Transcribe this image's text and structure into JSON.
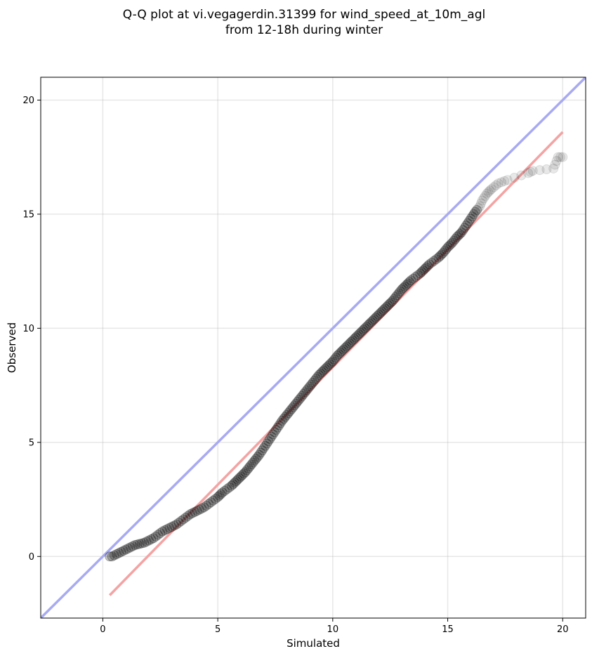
{
  "chart_data": {
    "type": "scatter",
    "title": "Q-Q plot at vi.vegagerdin.31399 for wind_speed_at_10m_agl",
    "subtitle": "from 12-18h during winter",
    "xlabel": "Simulated",
    "ylabel": "Observed",
    "xlim": [
      -2.7,
      21.0
    ],
    "ylim": [
      -2.7,
      21.0
    ],
    "x_ticks": [
      0,
      5,
      10,
      15,
      20
    ],
    "y_ticks": [
      0,
      5,
      10,
      15,
      20
    ],
    "grid": true,
    "legend": "none",
    "series": [
      {
        "kind": "quantile-points",
        "color": "#000000",
        "points": [
          [
            0.3,
            0.0
          ],
          [
            0.4,
            0.0
          ],
          [
            0.6,
            0.1
          ],
          [
            0.8,
            0.2
          ],
          [
            1.0,
            0.3
          ],
          [
            1.2,
            0.4
          ],
          [
            1.4,
            0.5
          ],
          [
            1.6,
            0.55
          ],
          [
            1.8,
            0.6
          ],
          [
            2.0,
            0.7
          ],
          [
            2.2,
            0.8
          ],
          [
            2.4,
            0.95
          ],
          [
            2.6,
            1.1
          ],
          [
            2.8,
            1.2
          ],
          [
            3.0,
            1.3
          ],
          [
            3.2,
            1.4
          ],
          [
            3.4,
            1.55
          ],
          [
            3.6,
            1.7
          ],
          [
            3.8,
            1.85
          ],
          [
            4.0,
            1.95
          ],
          [
            4.2,
            2.05
          ],
          [
            4.4,
            2.15
          ],
          [
            4.6,
            2.3
          ],
          [
            4.8,
            2.45
          ],
          [
            5.0,
            2.6
          ],
          [
            5.2,
            2.8
          ],
          [
            5.4,
            2.95
          ],
          [
            5.6,
            3.1
          ],
          [
            5.8,
            3.3
          ],
          [
            6.0,
            3.5
          ],
          [
            6.2,
            3.7
          ],
          [
            6.4,
            3.95
          ],
          [
            6.6,
            4.2
          ],
          [
            6.8,
            4.45
          ],
          [
            7.0,
            4.75
          ],
          [
            7.2,
            5.05
          ],
          [
            7.4,
            5.35
          ],
          [
            7.6,
            5.65
          ],
          [
            7.8,
            5.95
          ],
          [
            8.0,
            6.2
          ],
          [
            8.2,
            6.45
          ],
          [
            8.4,
            6.7
          ],
          [
            8.6,
            6.95
          ],
          [
            8.8,
            7.2
          ],
          [
            9.0,
            7.45
          ],
          [
            9.2,
            7.7
          ],
          [
            9.4,
            7.95
          ],
          [
            9.6,
            8.15
          ],
          [
            9.8,
            8.35
          ],
          [
            10.0,
            8.55
          ],
          [
            10.2,
            8.8
          ],
          [
            10.4,
            9.0
          ],
          [
            10.6,
            9.2
          ],
          [
            10.8,
            9.4
          ],
          [
            11.0,
            9.6
          ],
          [
            11.2,
            9.8
          ],
          [
            11.4,
            10.0
          ],
          [
            11.6,
            10.2
          ],
          [
            11.8,
            10.4
          ],
          [
            12.0,
            10.6
          ],
          [
            12.2,
            10.8
          ],
          [
            12.4,
            11.0
          ],
          [
            12.6,
            11.2
          ],
          [
            12.8,
            11.45
          ],
          [
            13.0,
            11.7
          ],
          [
            13.2,
            11.9
          ],
          [
            13.4,
            12.1
          ],
          [
            13.6,
            12.25
          ],
          [
            13.8,
            12.4
          ],
          [
            14.0,
            12.6
          ],
          [
            14.2,
            12.8
          ],
          [
            14.4,
            12.95
          ],
          [
            14.6,
            13.1
          ],
          [
            14.8,
            13.3
          ],
          [
            15.0,
            13.55
          ],
          [
            15.2,
            13.75
          ],
          [
            15.4,
            14.0
          ],
          [
            15.6,
            14.2
          ],
          [
            15.8,
            14.5
          ],
          [
            16.0,
            14.8
          ],
          [
            16.2,
            15.1
          ],
          [
            16.4,
            15.35
          ],
          [
            16.5,
            15.6
          ],
          [
            16.7,
            15.9
          ],
          [
            16.9,
            16.1
          ],
          [
            17.2,
            16.35
          ],
          [
            17.6,
            16.5
          ],
          [
            18.5,
            16.8
          ],
          [
            18.7,
            16.9
          ],
          [
            19.6,
            17.0
          ],
          [
            19.8,
            17.5
          ],
          [
            20.0,
            17.5
          ]
        ]
      },
      {
        "kind": "fit-line",
        "color": "#f4a3a3",
        "start": [
          0.3,
          -1.7
        ],
        "end": [
          20.0,
          18.6
        ]
      },
      {
        "kind": "identity-line",
        "color": "#a8aaf2",
        "start": [
          -2.7,
          -2.7
        ],
        "end": [
          21.0,
          21.0
        ]
      }
    ]
  }
}
